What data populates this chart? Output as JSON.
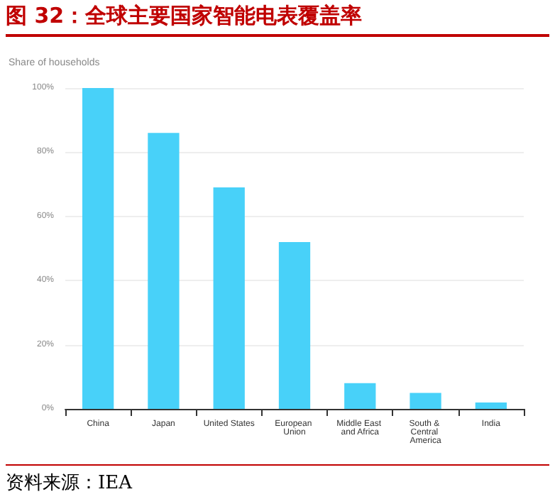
{
  "chart_data": {
    "type": "bar",
    "title": "图 32：全球主要国家智能电表覆盖率",
    "ylabel": "Share of households",
    "annotations": [
      "资料来源：IEA"
    ],
    "categories": [
      "China",
      "Japan",
      "United States",
      "European Union",
      "Middle East and Africa",
      "South & Central America",
      "India"
    ],
    "values": [
      100,
      86,
      69,
      52,
      8,
      5,
      2
    ],
    "color": "#48d1f9",
    "ylim": [
      0,
      100
    ],
    "yticks": [
      {
        "value": 0,
        "label": "0%"
      },
      {
        "value": 20,
        "label": "20%"
      },
      {
        "value": 40,
        "label": "40%"
      },
      {
        "value": 60,
        "label": "60%"
      },
      {
        "value": 80,
        "label": "80%"
      },
      {
        "value": 100,
        "label": "100%"
      }
    ],
    "grid": "y"
  }
}
